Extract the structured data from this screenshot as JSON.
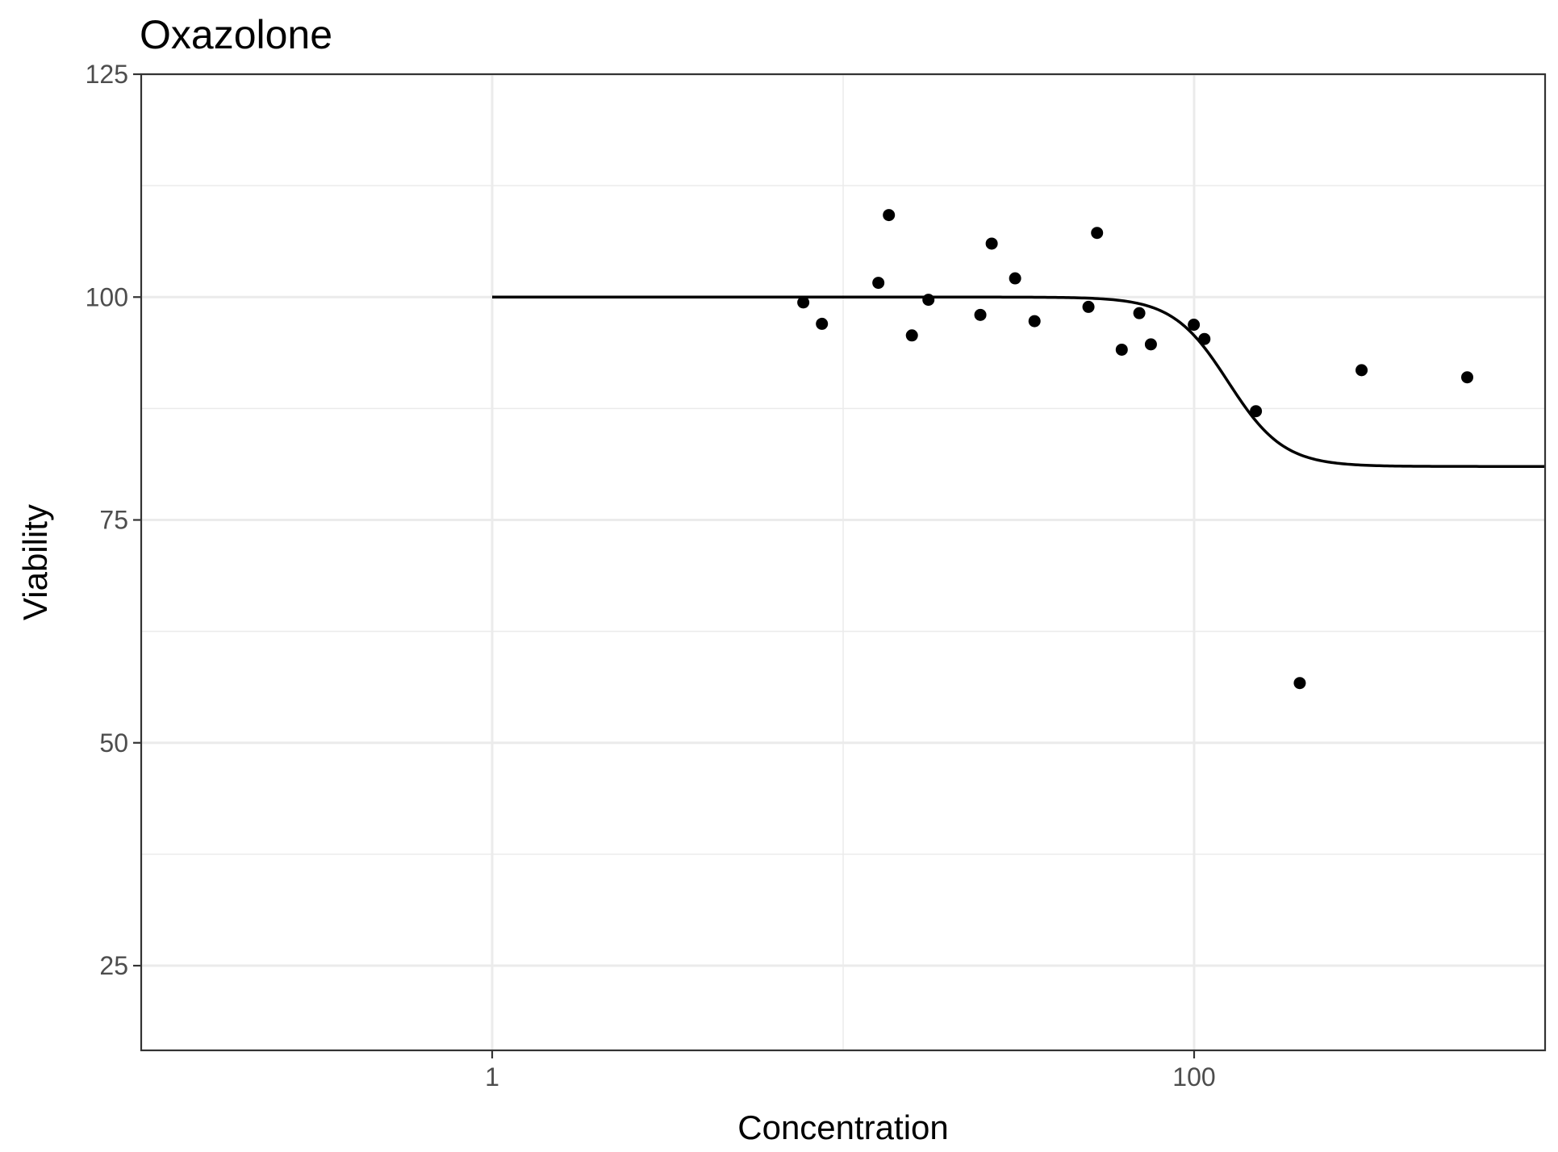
{
  "chart_data": {
    "type": "scatter",
    "title": "Oxazolone",
    "xlabel": "Concentration",
    "ylabel": "Viability",
    "x_scale": "log10",
    "xlim": [
      0.1,
      1000
    ],
    "ylim": [
      15.5,
      125
    ],
    "x_ticks": [
      {
        "value": 1,
        "label": "1"
      },
      {
        "value": 100,
        "label": "100"
      }
    ],
    "y_ticks": [
      {
        "value": 25,
        "label": "25"
      },
      {
        "value": 50,
        "label": "50"
      },
      {
        "value": 75,
        "label": "75"
      },
      {
        "value": 100,
        "label": "100"
      },
      {
        "value": 125,
        "label": "125"
      }
    ],
    "grid": true,
    "points": [
      {
        "x": 7.7,
        "y": 99.4
      },
      {
        "x": 8.7,
        "y": 97.0
      },
      {
        "x": 12.6,
        "y": 101.6
      },
      {
        "x": 13.5,
        "y": 109.2
      },
      {
        "x": 15.7,
        "y": 95.7
      },
      {
        "x": 17.5,
        "y": 99.7
      },
      {
        "x": 24.6,
        "y": 98.0
      },
      {
        "x": 26.5,
        "y": 106.0
      },
      {
        "x": 30.9,
        "y": 102.1
      },
      {
        "x": 35.1,
        "y": 97.3
      },
      {
        "x": 50.0,
        "y": 98.9
      },
      {
        "x": 52.9,
        "y": 107.2
      },
      {
        "x": 62.2,
        "y": 94.1
      },
      {
        "x": 69.8,
        "y": 98.2
      },
      {
        "x": 75.3,
        "y": 94.7
      },
      {
        "x": 99.8,
        "y": 96.9
      },
      {
        "x": 107.0,
        "y": 95.3
      },
      {
        "x": 150.0,
        "y": 87.2
      },
      {
        "x": 200.0,
        "y": 56.7
      },
      {
        "x": 300.0,
        "y": 91.8
      },
      {
        "x": 600.0,
        "y": 91.0
      }
    ],
    "fit_curve": {
      "type": "log-logistic",
      "top": 100,
      "bottom": 81,
      "ec50": 125,
      "hill": 5.5,
      "x_range": [
        1,
        1000
      ]
    }
  }
}
